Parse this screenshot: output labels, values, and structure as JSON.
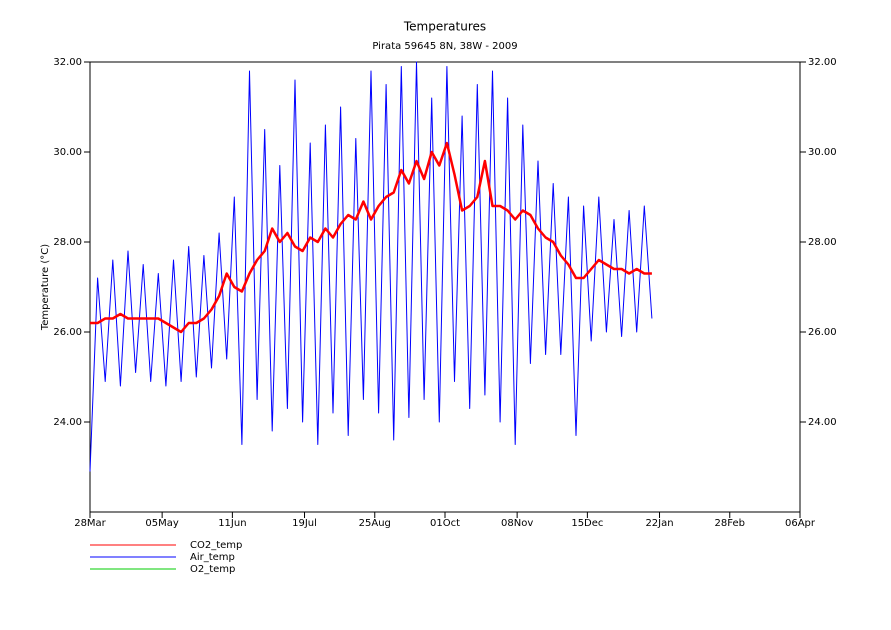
{
  "chart_data": {
    "type": "line",
    "title": "Temperatures",
    "subtitle": "Pirata 59645 8N, 38W - 2009",
    "y_label": "Temperature (°C)",
    "x": [
      "2009-03-28",
      "2009-04-01",
      "2009-04-05",
      "2009-04-09",
      "2009-04-13",
      "2009-04-17",
      "2009-04-21",
      "2009-04-25",
      "2009-04-29",
      "2009-05-03",
      "2009-05-07",
      "2009-05-11",
      "2009-05-15",
      "2009-05-19",
      "2009-05-23",
      "2009-05-27",
      "2009-05-31",
      "2009-06-04",
      "2009-06-08",
      "2009-06-12",
      "2009-06-16",
      "2009-06-20",
      "2009-06-24",
      "2009-06-28",
      "2009-07-02",
      "2009-07-06",
      "2009-07-10",
      "2009-07-14",
      "2009-07-18",
      "2009-07-22",
      "2009-07-26",
      "2009-07-30",
      "2009-08-03",
      "2009-08-07",
      "2009-08-11",
      "2009-08-15",
      "2009-08-19",
      "2009-08-23",
      "2009-08-27",
      "2009-08-31",
      "2009-09-04",
      "2009-09-08",
      "2009-09-12",
      "2009-09-16",
      "2009-09-20",
      "2009-09-24",
      "2009-09-28",
      "2009-10-02",
      "2009-10-06",
      "2009-10-10",
      "2009-10-14",
      "2009-10-18",
      "2009-10-22",
      "2009-10-26",
      "2009-10-30",
      "2009-11-03",
      "2009-11-07",
      "2009-11-11",
      "2009-11-15",
      "2009-11-19",
      "2009-11-23",
      "2009-11-27",
      "2009-12-01",
      "2009-12-05",
      "2009-12-09",
      "2009-12-13",
      "2009-12-17",
      "2009-12-21",
      "2009-12-25",
      "2009-12-29",
      "2010-01-02",
      "2010-01-06",
      "2010-01-10",
      "2010-01-14",
      "2010-01-18"
    ],
    "series": [
      {
        "name": "CO2_temp",
        "color": "#ff0000",
        "width": 2.5,
        "values": [
          26.2,
          26.2,
          26.3,
          26.3,
          26.4,
          26.3,
          26.3,
          26.3,
          26.3,
          26.3,
          26.2,
          26.1,
          26.0,
          26.2,
          26.2,
          26.3,
          26.5,
          26.8,
          27.3,
          27.0,
          26.9,
          27.3,
          27.6,
          27.8,
          28.3,
          28.0,
          28.2,
          27.9,
          27.8,
          28.1,
          28.0,
          28.3,
          28.1,
          28.4,
          28.6,
          28.5,
          28.9,
          28.5,
          28.8,
          29.0,
          29.1,
          29.6,
          29.3,
          29.8,
          29.4,
          30.0,
          29.7,
          30.2,
          29.5,
          28.7,
          28.8,
          29.0,
          29.8,
          28.8,
          28.8,
          28.7,
          28.5,
          28.7,
          28.6,
          28.3,
          28.1,
          28.0,
          27.7,
          27.5,
          27.2,
          27.2,
          27.4,
          27.6,
          27.5,
          27.4,
          27.4,
          27.3,
          27.4,
          27.3,
          27.3
        ]
      },
      {
        "name": "Air_temp",
        "color": "#0000ff",
        "width": 1,
        "values": [
          22.9,
          27.2,
          24.9,
          27.6,
          24.8,
          27.8,
          25.1,
          27.5,
          24.9,
          27.3,
          24.8,
          27.6,
          24.9,
          27.9,
          25.0,
          27.7,
          25.2,
          28.2,
          25.4,
          29.0,
          23.5,
          31.8,
          24.5,
          30.5,
          23.8,
          29.7,
          24.3,
          31.6,
          24.0,
          30.2,
          23.5,
          30.6,
          24.2,
          31.0,
          23.7,
          30.3,
          24.5,
          31.8,
          24.2,
          31.5,
          23.6,
          31.9,
          24.1,
          32.0,
          24.5,
          31.2,
          24.0,
          31.9,
          24.9,
          30.8,
          24.3,
          31.5,
          24.6,
          31.8,
          24.0,
          31.2,
          23.5,
          30.6,
          25.3,
          29.8,
          25.5,
          29.3,
          25.5,
          29.0,
          23.7,
          28.8,
          25.8,
          29.0,
          26.0,
          28.5,
          25.9,
          28.7,
          26.0,
          28.8,
          26.3
        ]
      },
      {
        "name": "O2_temp",
        "color": "#00cc00",
        "width": 1,
        "values": [
          null,
          null,
          null,
          null,
          null,
          null,
          null,
          null,
          null,
          null,
          null,
          null,
          null,
          null,
          null,
          null,
          null,
          null,
          null,
          null,
          null,
          null,
          null,
          null,
          null,
          null,
          null,
          null,
          null,
          null,
          null,
          null,
          null,
          null,
          null,
          null,
          null,
          null,
          null,
          null,
          null,
          null,
          null,
          null,
          null,
          null,
          null,
          null,
          null,
          null,
          null,
          null,
          null,
          null,
          null,
          null,
          null,
          null,
          null,
          null,
          null,
          null,
          null,
          null,
          null,
          null,
          null,
          null,
          null,
          null,
          null,
          null,
          null,
          null,
          null
        ]
      }
    ],
    "xlim": [
      "2009-03-28",
      "2010-04-06"
    ],
    "xticks": [
      {
        "value": "2009-03-28",
        "label": "28Mar"
      },
      {
        "value": "2009-05-05",
        "label": "05May"
      },
      {
        "value": "2009-06-11",
        "label": "11Jun"
      },
      {
        "value": "2009-07-19",
        "label": "19Jul"
      },
      {
        "value": "2009-08-25",
        "label": "25Aug"
      },
      {
        "value": "2009-10-01",
        "label": "01Oct"
      },
      {
        "value": "2009-11-08",
        "label": "08Nov"
      },
      {
        "value": "2009-12-15",
        "label": "15Dec"
      },
      {
        "value": "2010-01-22",
        "label": "22Jan"
      },
      {
        "value": "2010-02-28",
        "label": "28Feb"
      },
      {
        "value": "2010-04-06",
        "label": "06Apr"
      }
    ],
    "ylim": [
      22,
      32
    ],
    "yticks": [
      {
        "value": 24,
        "label": "24.00"
      },
      {
        "value": 26,
        "label": "26.00"
      },
      {
        "value": 28,
        "label": "28.00"
      },
      {
        "value": 30,
        "label": "30.00"
      },
      {
        "value": 32,
        "label": "32.00"
      }
    ],
    "right_axis": true
  }
}
